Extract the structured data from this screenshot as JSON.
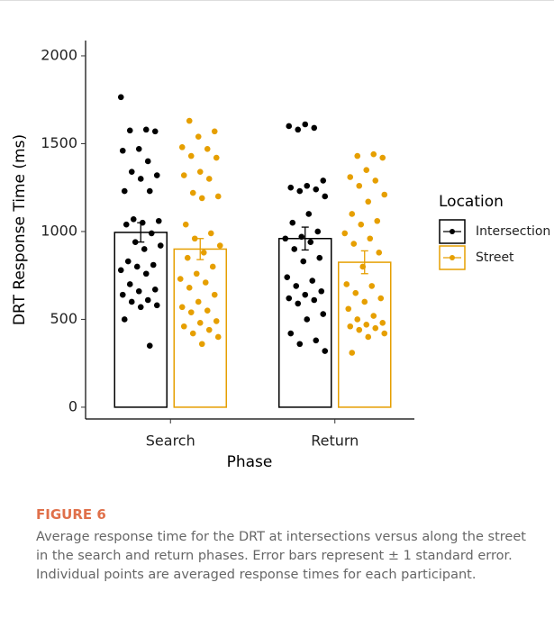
{
  "chart_data": {
    "type": "bar",
    "categories": [
      "Search",
      "Return"
    ],
    "xlabel": "Phase",
    "ylabel": "DRT Response Time (ms)",
    "ylim": [
      -67,
      2087
    ],
    "yticks": [
      0,
      500,
      1000,
      1500,
      2000
    ],
    "legend_title": "Location",
    "legend": "right",
    "series": [
      {
        "name": "Intersection",
        "color": "#000000",
        "values": [
          995,
          960
        ],
        "errors": [
          55,
          65
        ],
        "points": [
          [
            1765,
            1580,
            1575,
            1570,
            1470,
            1460,
            1400,
            1340,
            1320,
            1300,
            1230,
            1230,
            1070,
            1060,
            1050,
            1040,
            990,
            940,
            920,
            900,
            830,
            810,
            800,
            780,
            760,
            700,
            670,
            660,
            640,
            610,
            600,
            580,
            570,
            500,
            350
          ],
          [
            1610,
            1600,
            1590,
            1580,
            1290,
            1260,
            1250,
            1240,
            1230,
            1200,
            1100,
            1050,
            1000,
            970,
            960,
            940,
            900,
            850,
            830,
            740,
            720,
            690,
            660,
            640,
            620,
            610,
            590,
            530,
            500,
            420,
            380,
            360,
            320
          ]
        ]
      },
      {
        "name": "Street",
        "color": "#e69f00",
        "values": [
          900,
          825
        ],
        "errors": [
          60,
          65
        ],
        "points": [
          [
            1630,
            1570,
            1540,
            1480,
            1470,
            1430,
            1420,
            1340,
            1320,
            1300,
            1220,
            1200,
            1190,
            1040,
            990,
            960,
            920,
            880,
            850,
            800,
            760,
            730,
            710,
            680,
            640,
            600,
            570,
            550,
            540,
            490,
            480,
            460,
            440,
            420,
            400,
            360
          ],
          [
            1440,
            1430,
            1420,
            1350,
            1310,
            1290,
            1260,
            1210,
            1170,
            1100,
            1060,
            1040,
            990,
            960,
            930,
            880,
            800,
            700,
            690,
            650,
            620,
            600,
            560,
            520,
            500,
            480,
            470,
            460,
            450,
            440,
            420,
            400,
            310
          ]
        ]
      }
    ]
  },
  "caption": {
    "label": "FIGURE 6",
    "text": "Average response time for the DRT at intersections versus along the street in the search and return phases. Error bars represent ± 1 standard error. Individual points are averaged response times for each participant."
  }
}
